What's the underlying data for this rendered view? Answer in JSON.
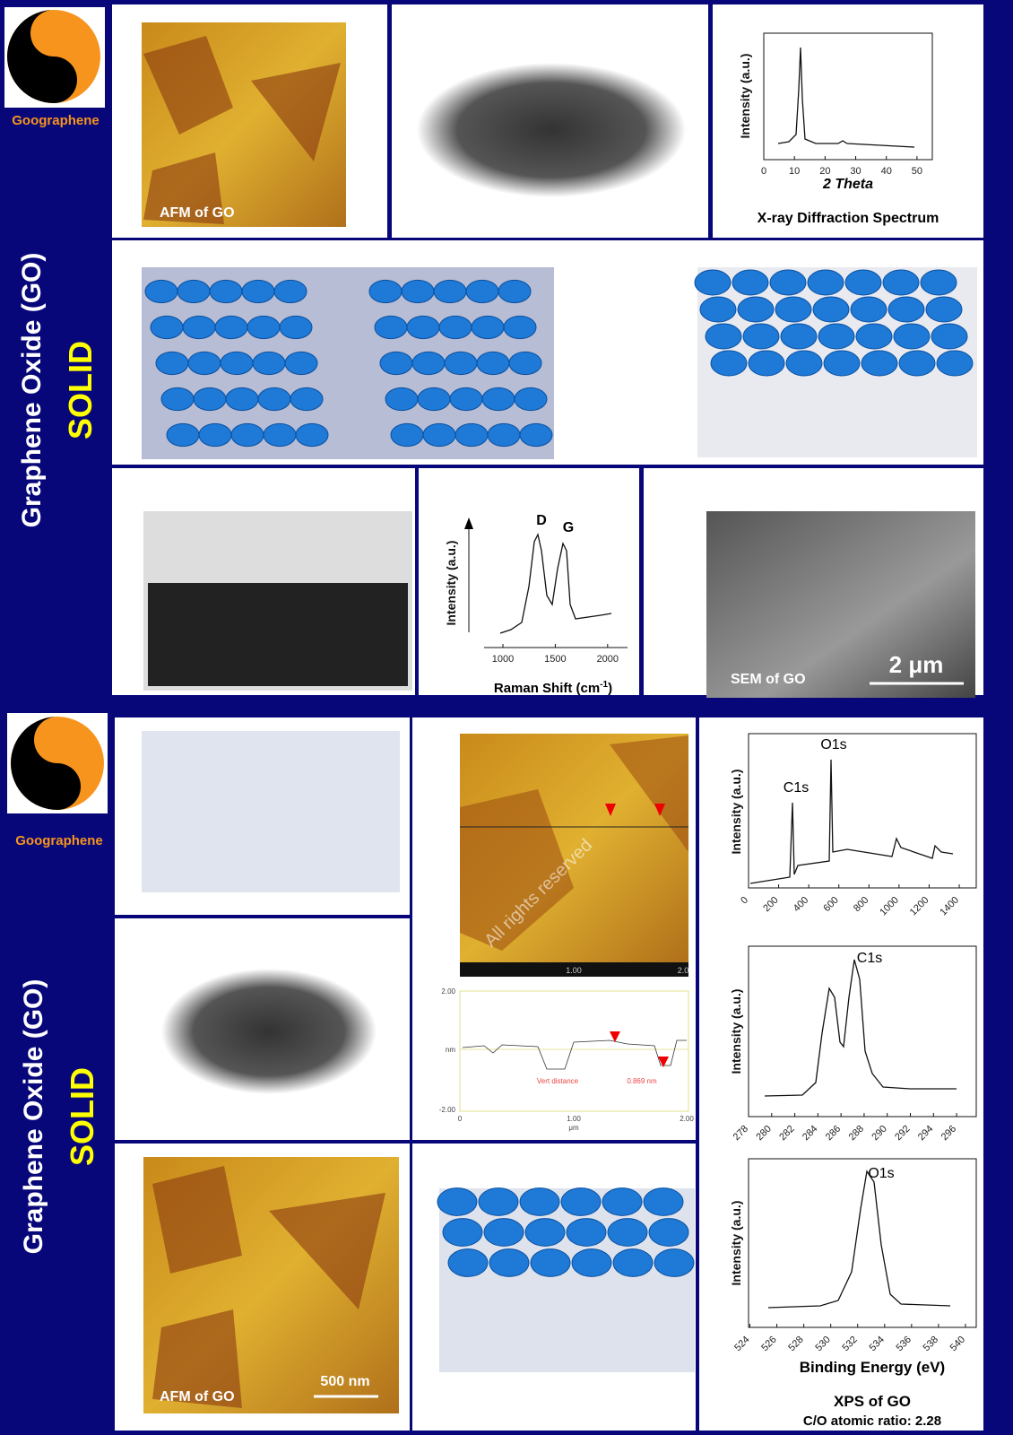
{
  "top": {
    "logo": {
      "g": "G",
      "o": "O",
      "brand": "Goographene"
    },
    "side_title": "Graphene Oxide (GO)",
    "side_subtitle": "SOLID",
    "afm_label": "AFM of GO",
    "xrd": {
      "y_label": "Intensity (a.u.)",
      "x_label": "2 Theta",
      "xlim": [
        0,
        55
      ],
      "xticks": [
        0,
        10,
        20,
        30,
        40,
        50
      ],
      "caption": "X-ray Diffraction Spectrum"
    },
    "raman": {
      "y_label": "Intensity (a.u.)",
      "peaks": [
        "D",
        "G"
      ],
      "x_label": "Raman Shift (cm",
      "x_label_sup": "-1",
      "x_label_end": ")",
      "xlim": [
        820,
        2190
      ],
      "xticks": [
        1000,
        1500,
        2000
      ]
    },
    "sem_label": "SEM of GO",
    "sem_scale": "2 μm"
  },
  "bottom": {
    "logo": {
      "g": "G",
      "o": "O",
      "brand": "Goographene"
    },
    "side_title": "Graphene Oxide (GO)",
    "side_subtitle": "SOLID",
    "watermark": "All rights reserved",
    "afm_axis": [
      "1.00",
      "2.0"
    ],
    "profile": {
      "yticks": [
        "2.00",
        "nm",
        "-2.00"
      ],
      "xticks": [
        "0",
        "1.00",
        "2.00"
      ],
      "x_unit": "μm",
      "annotation": "Vert distance",
      "measure": "0.869 nm"
    },
    "xps_survey": {
      "y_label": "Intensity (a.u.)",
      "peaks": [
        "C1s",
        "O1s"
      ],
      "xlim": [
        0,
        1513
      ],
      "xticks": [
        0,
        200,
        400,
        600,
        800,
        1000,
        1200,
        1400
      ]
    },
    "xps_c1s": {
      "y_label": "Intensity (a.u.)",
      "title": "C1s",
      "xlim": [
        278,
        297.7
      ],
      "xticks": [
        278,
        280,
        282,
        284,
        286,
        288,
        290,
        292,
        294,
        296
      ]
    },
    "xps_o1s": {
      "y_label": "Intensity (a.u.)",
      "title": "O1s",
      "xlim": [
        523.9,
        540.8
      ],
      "xticks": [
        524,
        526,
        528,
        530,
        532,
        534,
        536,
        538,
        540
      ],
      "x_label": "Binding Energy (eV)"
    },
    "afm_label": "AFM of GO",
    "afm_scale": "500 nm",
    "caption": "XPS of GO",
    "ratio": "C/O atomic ratio: 2.28"
  }
}
